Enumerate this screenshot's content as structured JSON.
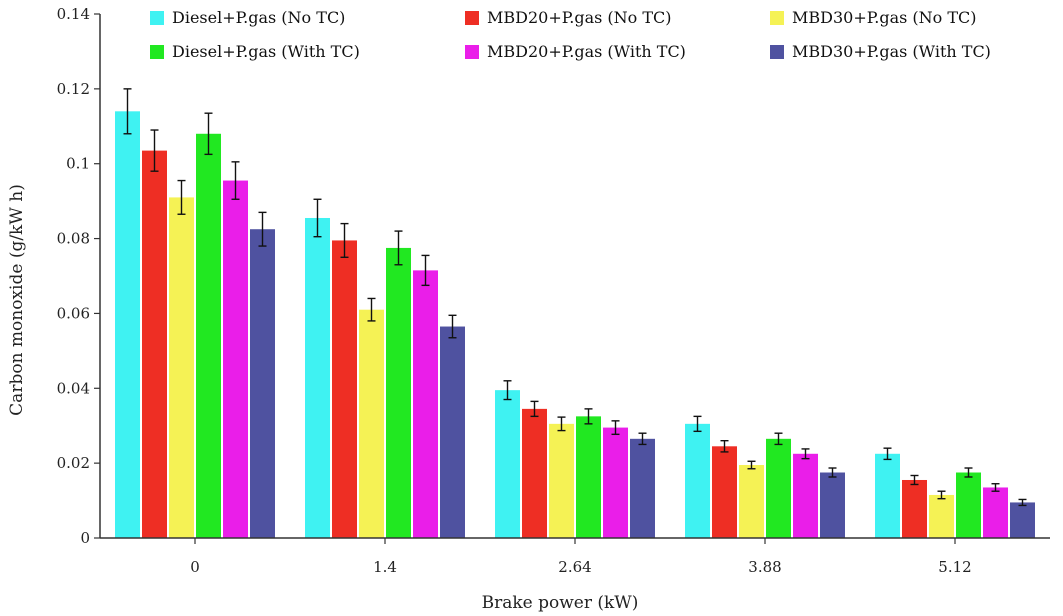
{
  "chart_data": {
    "type": "bar",
    "title": "",
    "xlabel": "Brake power (kW)",
    "ylabel": "Carbon monoxide (g/kW h)",
    "categories": [
      "0",
      "1.4",
      "2.64",
      "3.88",
      "5.12"
    ],
    "ylim": [
      0,
      0.14
    ],
    "yticks": [
      "0",
      "0.02",
      "0.04",
      "0.06",
      "0.08",
      "0.1",
      "0.12",
      "0.14"
    ],
    "grid": false,
    "legend_position": "top",
    "series": [
      {
        "name": "Diesel+P.gas (No TC)",
        "color": "#3ff2f2",
        "values": [
          0.114,
          0.0855,
          0.0395,
          0.0305,
          0.0225
        ],
        "errors": [
          0.006,
          0.005,
          0.0025,
          0.002,
          0.0015
        ]
      },
      {
        "name": "MBD20+P.gas (No TC)",
        "color": "#ee2e24",
        "values": [
          0.1035,
          0.0795,
          0.0345,
          0.0245,
          0.0155
        ],
        "errors": [
          0.0055,
          0.0045,
          0.002,
          0.0015,
          0.0012
        ]
      },
      {
        "name": "MBD30+P.gas (No TC)",
        "color": "#f5f255",
        "values": [
          0.091,
          0.061,
          0.0305,
          0.0195,
          0.0115
        ],
        "errors": [
          0.0045,
          0.003,
          0.0018,
          0.001,
          0.001
        ]
      },
      {
        "name": "Diesel+P.gas (With TC)",
        "color": "#21e821",
        "values": [
          0.108,
          0.0775,
          0.0325,
          0.0265,
          0.0175
        ],
        "errors": [
          0.0055,
          0.0045,
          0.002,
          0.0015,
          0.0012
        ]
      },
      {
        "name": "MBD20+P.gas (With TC)",
        "color": "#ea1ee9",
        "values": [
          0.0955,
          0.0715,
          0.0295,
          0.0225,
          0.0135
        ],
        "errors": [
          0.005,
          0.004,
          0.0018,
          0.0013,
          0.001
        ]
      },
      {
        "name": "MBD30+P.gas (With TC)",
        "color": "#4f52a0",
        "values": [
          0.0825,
          0.0565,
          0.0265,
          0.0175,
          0.0095
        ],
        "errors": [
          0.0045,
          0.003,
          0.0015,
          0.0012,
          0.0008
        ]
      }
    ]
  }
}
